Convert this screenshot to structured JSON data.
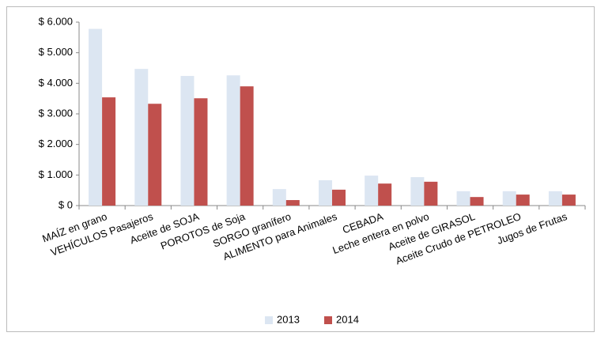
{
  "chart_data": {
    "type": "bar",
    "categories": [
      "MAÍZ en grano",
      "VEHÍCULOS  Pasajeros",
      "Aceite de SOJA",
      "POROTOS de Soja",
      "SORGO granífero",
      "ALIMENTO para Animales",
      "CEBADA",
      "Leche entera en polvo",
      "Aceite de GIRASOL",
      "Aceite Crudo de PETROLEO",
      "Jugos de Frutas"
    ],
    "series": [
      {
        "name": "2013",
        "color": "#dce6f2",
        "values": [
          5780,
          4470,
          4240,
          4260,
          540,
          830,
          980,
          930,
          470,
          470,
          470
        ]
      },
      {
        "name": "2014",
        "color": "#c0504d",
        "values": [
          3540,
          3330,
          3510,
          3900,
          180,
          520,
          720,
          780,
          280,
          360,
          360
        ]
      }
    ],
    "ylim": [
      0,
      6000
    ],
    "yticks": [
      {
        "value": 0,
        "label": "$ 0"
      },
      {
        "value": 1000,
        "label": "$ 1.000"
      },
      {
        "value": 2000,
        "label": "$ 2.000"
      },
      {
        "value": 3000,
        "label": "$ 3.000"
      },
      {
        "value": 4000,
        "label": "$ 4.000"
      },
      {
        "value": 5000,
        "label": "$ 5.000"
      },
      {
        "value": 6000,
        "label": "$ 6.000"
      }
    ],
    "grid": false,
    "legend": "bottom"
  }
}
